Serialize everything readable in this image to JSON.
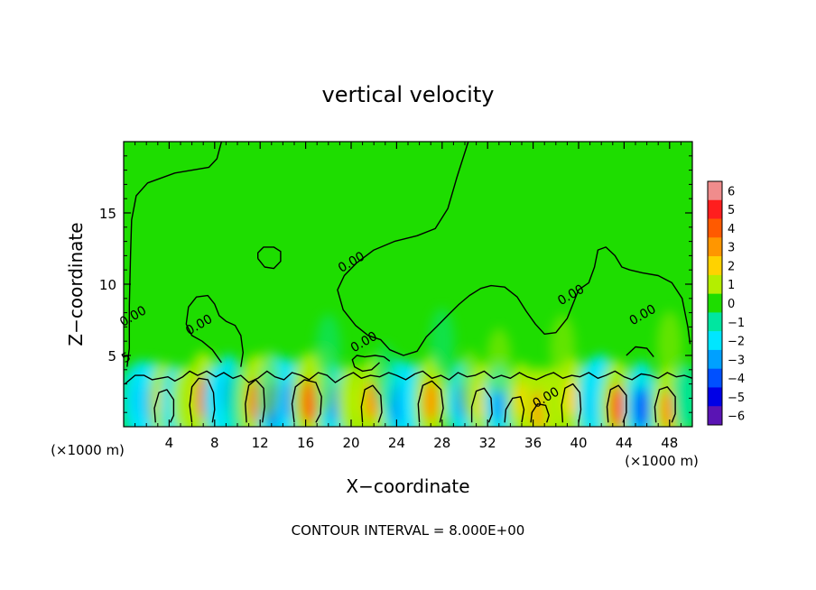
{
  "chart_data": {
    "type": "heatmap",
    "title": "vertical velocity",
    "xlabel": "X−coordinate",
    "ylabel": "Z−coordinate",
    "x_unit_left": "(×1000 m)",
    "x_unit_right": "(×1000 m)",
    "footer": "CONTOUR INTERVAL = 8.000E+00",
    "xlim": [
      0,
      50
    ],
    "ylim": [
      0,
      20
    ],
    "x_ticks": [
      {
        "value": 4,
        "label": "4"
      },
      {
        "value": 8,
        "label": "8"
      },
      {
        "value": 12,
        "label": "12"
      },
      {
        "value": 16,
        "label": "16"
      },
      {
        "value": 20,
        "label": "20"
      },
      {
        "value": 24,
        "label": "24"
      },
      {
        "value": 28,
        "label": "28"
      },
      {
        "value": 32,
        "label": "32"
      },
      {
        "value": 36,
        "label": "36"
      },
      {
        "value": 40,
        "label": "40"
      },
      {
        "value": 44,
        "label": "44"
      },
      {
        "value": 48,
        "label": "48"
      }
    ],
    "y_ticks": [
      {
        "value": 5,
        "label": "5"
      },
      {
        "value": 10,
        "label": "10"
      },
      {
        "value": 15,
        "label": "15"
      }
    ],
    "colorbar": {
      "range": [
        -6,
        6
      ],
      "labels": [
        "6",
        "5",
        "4",
        "3",
        "2",
        "1",
        "0",
        "−1",
        "−2",
        "−3",
        "−4",
        "−5",
        "−6"
      ],
      "colors": [
        "#f08c8c",
        "#ff1e1e",
        "#ff5a00",
        "#ff9600",
        "#ffd200",
        "#b4ee00",
        "#1edd00",
        "#00e6a0",
        "#00e6ff",
        "#00a0ff",
        "#0050ff",
        "#0000e6",
        "#5a14b4"
      ]
    },
    "contour_labels": [
      {
        "text": "0.00",
        "x": 1.0,
        "z": 7.5
      },
      {
        "text": "0.00",
        "x": 6.8,
        "z": 6.9
      },
      {
        "text": "0.00",
        "x": 20.2,
        "z": 11.3
      },
      {
        "text": "0.00",
        "x": 21.3,
        "z": 5.7
      },
      {
        "text": "0.00",
        "x": 39.5,
        "z": 9.0
      },
      {
        "text": "0.00",
        "x": 45.8,
        "z": 7.6
      },
      {
        "text": "0.00",
        "x": 37.3,
        "z": 1.8
      },
      {
        "text": "5",
        "x": 0.4,
        "z": 4.6
      }
    ],
    "cells": [
      {
        "x": 0.6,
        "z": 1.8,
        "w": -1
      },
      {
        "x": 1.5,
        "z": 1.8,
        "w": -2.5
      },
      {
        "x": 2.5,
        "z": 1.6,
        "w": -3
      },
      {
        "x": 3.5,
        "z": 1.8,
        "w": 2
      },
      {
        "x": 4.5,
        "z": 1.6,
        "w": -2
      },
      {
        "x": 5.4,
        "z": 1.8,
        "w": 1
      },
      {
        "x": 7.0,
        "z": 2.0,
        "w": 4
      },
      {
        "x": 8.2,
        "z": 1.8,
        "w": -1.5
      },
      {
        "x": 9.2,
        "z": 2.2,
        "w": -2.5
      },
      {
        "x": 10.1,
        "z": 1.8,
        "w": -1
      },
      {
        "x": 11.6,
        "z": 1.8,
        "w": 4
      },
      {
        "x": 13.3,
        "z": 1.5,
        "w": -5
      },
      {
        "x": 14.5,
        "z": 1.8,
        "w": -3
      },
      {
        "x": 16.3,
        "z": 1.8,
        "w": 4.5
      },
      {
        "x": 18.4,
        "z": 1.6,
        "w": -2.5
      },
      {
        "x": 20.0,
        "z": 1.8,
        "w": 1.5
      },
      {
        "x": 21.8,
        "z": 1.8,
        "w": 3
      },
      {
        "x": 24.2,
        "z": 1.6,
        "w": -3.5
      },
      {
        "x": 25.3,
        "z": 1.8,
        "w": -2
      },
      {
        "x": 27.0,
        "z": 1.8,
        "w": 3.5
      },
      {
        "x": 29.7,
        "z": 1.8,
        "w": -2.5
      },
      {
        "x": 31.5,
        "z": 1.8,
        "w": 2
      },
      {
        "x": 33.0,
        "z": 1.6,
        "w": -2.5
      },
      {
        "x": 35.0,
        "z": 1.8,
        "w": 2
      },
      {
        "x": 36.5,
        "z": 1.2,
        "w": 3
      },
      {
        "x": 37.8,
        "z": 1.8,
        "w": 1
      },
      {
        "x": 39.4,
        "z": 2.0,
        "w": 2.5
      },
      {
        "x": 41.2,
        "z": 1.8,
        "w": -3
      },
      {
        "x": 42.0,
        "z": 2.4,
        "w": -2
      },
      {
        "x": 43.4,
        "z": 1.4,
        "w": 4
      },
      {
        "x": 45.5,
        "z": 1.3,
        "w": -4
      },
      {
        "x": 47.8,
        "z": 1.2,
        "w": 3
      },
      {
        "x": 49.4,
        "z": 2.0,
        "w": -1
      },
      {
        "x": 12.6,
        "z": 3.0,
        "w": 0.8
      },
      {
        "x": 17.5,
        "z": 3.2,
        "w": 0.8
      },
      {
        "x": 23.0,
        "z": 3.4,
        "w": -0.8
      },
      {
        "x": 30.5,
        "z": 3.0,
        "w": 0.8
      },
      {
        "x": 38.6,
        "z": 5.5,
        "w": 0.7
      },
      {
        "x": 28.0,
        "z": 6.0,
        "w": -0.6
      },
      {
        "x": 48.0,
        "z": 5.8,
        "w": 0.6
      },
      {
        "x": 18.0,
        "z": 5.6,
        "w": -0.6
      },
      {
        "x": 33.0,
        "z": 4.6,
        "w": 0.6
      }
    ],
    "contours": [
      [
        [
          0.3,
          4.2
        ],
        [
          0.5,
          5.5
        ],
        [
          0.5,
          8.5
        ],
        [
          0.6,
          12
        ],
        [
          0.7,
          14.5
        ],
        [
          1.1,
          16.2
        ],
        [
          2.1,
          17.1
        ],
        [
          4.5,
          17.8
        ],
        [
          7.5,
          18.2
        ],
        [
          8.2,
          18.8
        ],
        [
          8.6,
          20
        ]
      ],
      [
        [
          11.8,
          11.8
        ],
        [
          12.4,
          11.2
        ],
        [
          13.2,
          11.1
        ],
        [
          13.8,
          11.6
        ],
        [
          13.8,
          12.3
        ],
        [
          13.2,
          12.6
        ],
        [
          12.3,
          12.6
        ],
        [
          11.8,
          12.2
        ],
        [
          11.8,
          11.8
        ]
      ],
      [
        [
          30.3,
          20
        ],
        [
          29.3,
          17.5
        ],
        [
          28.5,
          15.3
        ],
        [
          27.4,
          13.9
        ],
        [
          25.8,
          13.4
        ],
        [
          23.8,
          13.0
        ],
        [
          22.0,
          12.4
        ],
        [
          20.5,
          11.5
        ],
        [
          19.4,
          10.6
        ],
        [
          18.8,
          9.6
        ],
        [
          19.3,
          8.2
        ],
        [
          20.4,
          7.1
        ],
        [
          21.5,
          6.4
        ],
        [
          22.6,
          6.1
        ],
        [
          23.4,
          5.4
        ],
        [
          24.6,
          5.0
        ],
        [
          25.8,
          5.3
        ],
        [
          26.6,
          6.3
        ],
        [
          27.5,
          7.0
        ],
        [
          28.6,
          7.9
        ],
        [
          29.5,
          8.6
        ],
        [
          30.4,
          9.2
        ],
        [
          31.4,
          9.7
        ],
        [
          32.3,
          9.9
        ],
        [
          33.5,
          9.8
        ],
        [
          34.6,
          9.1
        ],
        [
          35.4,
          8.1
        ],
        [
          36.2,
          7.2
        ],
        [
          37.0,
          6.5
        ],
        [
          38.0,
          6.6
        ],
        [
          39.0,
          7.6
        ],
        [
          39.5,
          8.6
        ],
        [
          40.0,
          9.6
        ],
        [
          40.9,
          10.1
        ],
        [
          41.4,
          11.2
        ],
        [
          41.7,
          12.4
        ],
        [
          42.4,
          12.6
        ],
        [
          43.2,
          12.0
        ],
        [
          43.8,
          11.2
        ],
        [
          44.5,
          11.0
        ],
        [
          45.6,
          10.8
        ],
        [
          47.0,
          10.6
        ],
        [
          48.2,
          10.1
        ],
        [
          49.1,
          9.0
        ],
        [
          49.6,
          7.0
        ],
        [
          49.8,
          5.8
        ]
      ],
      [
        [
          8.6,
          4.5
        ],
        [
          7.8,
          5.4
        ],
        [
          6.9,
          6.0
        ],
        [
          6.0,
          6.4
        ],
        [
          5.5,
          7.2
        ],
        [
          5.7,
          8.4
        ],
        [
          6.4,
          9.1
        ],
        [
          7.4,
          9.2
        ],
        [
          8.0,
          8.6
        ],
        [
          8.4,
          7.8
        ],
        [
          9.0,
          7.4
        ],
        [
          9.8,
          7.1
        ],
        [
          10.3,
          6.4
        ],
        [
          10.5,
          5.2
        ],
        [
          10.3,
          4.2
        ]
      ],
      [
        [
          22.5,
          4.5
        ],
        [
          21.8,
          4.0
        ],
        [
          21.0,
          3.9
        ],
        [
          20.3,
          4.2
        ],
        [
          20.1,
          4.7
        ],
        [
          20.5,
          5.0
        ],
        [
          21.2,
          4.9
        ],
        [
          22.1,
          5.0
        ],
        [
          22.9,
          4.9
        ],
        [
          23.4,
          4.6
        ]
      ],
      [
        [
          44.2,
          5.0
        ],
        [
          45.0,
          5.6
        ],
        [
          46.0,
          5.5
        ],
        [
          46.6,
          4.9
        ]
      ],
      [
        [
          0.1,
          3.0
        ],
        [
          1.0,
          3.6
        ],
        [
          1.8,
          3.6
        ],
        [
          2.5,
          3.3
        ],
        [
          3.2,
          3.4
        ],
        [
          3.9,
          3.5
        ],
        [
          4.5,
          3.2
        ],
        [
          5.2,
          3.5
        ],
        [
          5.8,
          3.9
        ],
        [
          6.5,
          3.6
        ],
        [
          7.3,
          3.9
        ],
        [
          8.1,
          3.5
        ],
        [
          8.8,
          3.8
        ],
        [
          9.6,
          3.4
        ],
        [
          10.3,
          3.6
        ],
        [
          11.0,
          3.1
        ],
        [
          11.8,
          3.4
        ],
        [
          12.6,
          3.9
        ],
        [
          13.3,
          3.5
        ],
        [
          14.1,
          3.3
        ],
        [
          14.8,
          3.8
        ],
        [
          15.6,
          3.6
        ],
        [
          16.3,
          3.3
        ],
        [
          17.1,
          3.8
        ],
        [
          17.9,
          3.6
        ],
        [
          18.6,
          3.1
        ],
        [
          19.4,
          3.5
        ],
        [
          20.2,
          3.8
        ],
        [
          20.9,
          3.4
        ],
        [
          21.7,
          3.6
        ],
        [
          22.5,
          3.5
        ],
        [
          23.3,
          3.8
        ],
        [
          24.0,
          3.6
        ],
        [
          24.8,
          3.3
        ],
        [
          25.6,
          3.7
        ],
        [
          26.3,
          3.9
        ],
        [
          27.1,
          3.4
        ],
        [
          27.9,
          3.6
        ],
        [
          28.6,
          3.3
        ],
        [
          29.4,
          3.8
        ],
        [
          30.2,
          3.5
        ],
        [
          30.9,
          3.6
        ],
        [
          31.7,
          3.9
        ],
        [
          32.5,
          3.4
        ],
        [
          33.2,
          3.6
        ],
        [
          34.0,
          3.4
        ],
        [
          34.8,
          3.8
        ],
        [
          35.5,
          3.5
        ],
        [
          36.3,
          3.3
        ],
        [
          37.1,
          3.6
        ],
        [
          37.8,
          3.8
        ],
        [
          38.6,
          3.4
        ],
        [
          39.4,
          3.6
        ],
        [
          40.1,
          3.5
        ],
        [
          40.9,
          3.8
        ],
        [
          41.7,
          3.4
        ],
        [
          42.4,
          3.6
        ],
        [
          43.2,
          3.9
        ],
        [
          44.0,
          3.5
        ],
        [
          44.7,
          3.3
        ],
        [
          45.5,
          3.7
        ],
        [
          46.3,
          3.6
        ],
        [
          47.0,
          3.4
        ],
        [
          47.8,
          3.8
        ],
        [
          48.6,
          3.5
        ],
        [
          49.3,
          3.6
        ],
        [
          50,
          3.4
        ]
      ],
      [
        [
          6.0,
          0.3
        ],
        [
          5.8,
          1.5
        ],
        [
          6.0,
          2.8
        ],
        [
          6.6,
          3.4
        ],
        [
          7.4,
          3.3
        ],
        [
          7.9,
          2.4
        ],
        [
          8.0,
          1.2
        ],
        [
          7.8,
          0.3
        ]
      ],
      [
        [
          10.8,
          0.3
        ],
        [
          10.7,
          1.6
        ],
        [
          11.0,
          2.9
        ],
        [
          11.6,
          3.3
        ],
        [
          12.3,
          2.7
        ],
        [
          12.4,
          1.4
        ],
        [
          12.2,
          0.3
        ]
      ],
      [
        [
          15.0,
          0.3
        ],
        [
          14.8,
          1.6
        ],
        [
          15.1,
          2.8
        ],
        [
          15.9,
          3.3
        ],
        [
          16.9,
          3.1
        ],
        [
          17.4,
          2.1
        ],
        [
          17.3,
          0.9
        ],
        [
          16.9,
          0.3
        ]
      ],
      [
        [
          21.0,
          0.3
        ],
        [
          20.9,
          1.4
        ],
        [
          21.2,
          2.6
        ],
        [
          21.9,
          2.9
        ],
        [
          22.6,
          2.2
        ],
        [
          22.7,
          1.0
        ],
        [
          22.4,
          0.3
        ]
      ],
      [
        [
          26.0,
          0.3
        ],
        [
          25.9,
          1.6
        ],
        [
          26.3,
          2.9
        ],
        [
          27.1,
          3.2
        ],
        [
          27.9,
          2.6
        ],
        [
          28.1,
          1.3
        ],
        [
          27.8,
          0.3
        ]
      ],
      [
        [
          30.6,
          0.3
        ],
        [
          30.6,
          1.4
        ],
        [
          31.0,
          2.5
        ],
        [
          31.7,
          2.7
        ],
        [
          32.3,
          2.0
        ],
        [
          32.4,
          0.9
        ],
        [
          32.1,
          0.3
        ]
      ],
      [
        [
          35.8,
          0.3
        ],
        [
          35.9,
          1.0
        ],
        [
          36.4,
          1.6
        ],
        [
          37.1,
          1.5
        ],
        [
          37.4,
          0.8
        ],
        [
          37.2,
          0.3
        ]
      ],
      [
        [
          38.6,
          0.3
        ],
        [
          38.5,
          1.5
        ],
        [
          38.8,
          2.7
        ],
        [
          39.5,
          3.0
        ],
        [
          40.1,
          2.4
        ],
        [
          40.2,
          1.2
        ],
        [
          40.0,
          0.3
        ]
      ],
      [
        [
          42.6,
          0.3
        ],
        [
          42.5,
          1.4
        ],
        [
          42.8,
          2.6
        ],
        [
          43.5,
          2.9
        ],
        [
          44.2,
          2.2
        ],
        [
          44.2,
          1.0
        ],
        [
          43.9,
          0.3
        ]
      ],
      [
        [
          46.8,
          0.3
        ],
        [
          46.7,
          1.4
        ],
        [
          47.1,
          2.6
        ],
        [
          47.8,
          2.8
        ],
        [
          48.5,
          2.1
        ],
        [
          48.5,
          0.9
        ],
        [
          48.2,
          0.3
        ]
      ],
      [
        [
          2.8,
          0.3
        ],
        [
          2.7,
          1.3
        ],
        [
          3.1,
          2.4
        ],
        [
          3.8,
          2.6
        ],
        [
          4.4,
          1.9
        ],
        [
          4.4,
          0.8
        ],
        [
          4.1,
          0.3
        ]
      ],
      [
        [
          33.5,
          0.3
        ],
        [
          33.6,
          1.2
        ],
        [
          34.2,
          2.0
        ],
        [
          34.9,
          2.1
        ],
        [
          35.2,
          1.2
        ],
        [
          35.0,
          0.3
        ]
      ]
    ]
  }
}
